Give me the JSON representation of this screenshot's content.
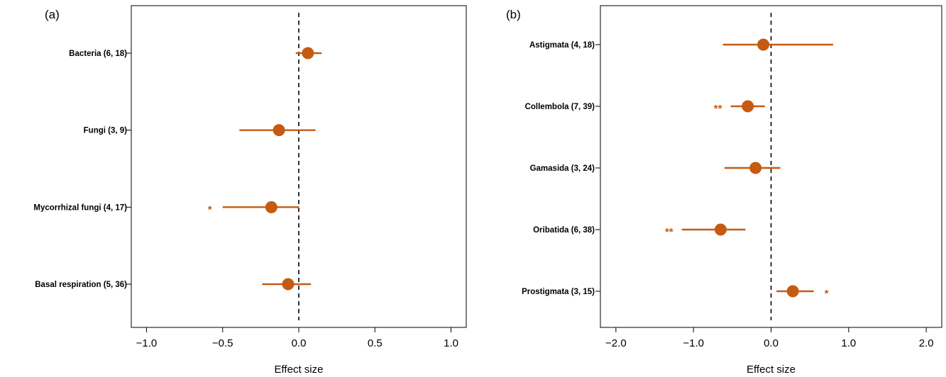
{
  "colors": {
    "marker": "#C55A11",
    "zero_line": "#000000",
    "frame": "#000000"
  },
  "chart_data": [
    {
      "type": "scatter",
      "panel": "(a)",
      "xlabel": "Effect size",
      "xlim": [
        -1.1,
        1.1
      ],
      "xticks": [
        -1.0,
        -0.5,
        0.0,
        0.5,
        1.0
      ],
      "xtick_labels": [
        "−1.0",
        "−0.5",
        "0.0",
        "0.5",
        "1.0"
      ],
      "zero_line": "dashed at 0",
      "points": [
        {
          "label": "Bacteria (6, 18)",
          "mean": 0.06,
          "lower": -0.02,
          "upper": 0.15,
          "sig": ""
        },
        {
          "label": "Fungi (3, 9)",
          "mean": -0.13,
          "lower": -0.39,
          "upper": 0.11,
          "sig": ""
        },
        {
          "label": "Mycorrhizal fungi (4, 17)",
          "mean": -0.18,
          "lower": -0.5,
          "upper": 0.0,
          "sig": "*"
        },
        {
          "label": "Basal respiration (5, 36)",
          "mean": -0.07,
          "lower": -0.24,
          "upper": 0.08,
          "sig": ""
        }
      ]
    },
    {
      "type": "scatter",
      "panel": "(b)",
      "xlabel": "Effect size",
      "xlim": [
        -2.2,
        2.2
      ],
      "xticks": [
        -2.0,
        -1.0,
        0.0,
        1.0,
        2.0
      ],
      "xtick_labels": [
        "−2.0",
        "−1.0",
        "0.0",
        "1.0",
        "2.0"
      ],
      "zero_line": "dashed at 0",
      "points": [
        {
          "label": "Astigmata (4, 18)",
          "mean": -0.1,
          "lower": -0.62,
          "upper": 0.8,
          "sig": ""
        },
        {
          "label": "Collembola (7, 39)",
          "mean": -0.3,
          "lower": -0.52,
          "upper": -0.08,
          "sig": "**"
        },
        {
          "label": "Gamasida (3, 24)",
          "mean": -0.2,
          "lower": -0.6,
          "upper": 0.12,
          "sig": ""
        },
        {
          "label": "Oribatida (6, 38)",
          "mean": -0.65,
          "lower": -1.15,
          "upper": -0.33,
          "sig": "**"
        },
        {
          "label": "Prostigmata (3, 15)",
          "mean": 0.28,
          "lower": 0.07,
          "upper": 0.55,
          "sig": "*"
        }
      ]
    }
  ]
}
